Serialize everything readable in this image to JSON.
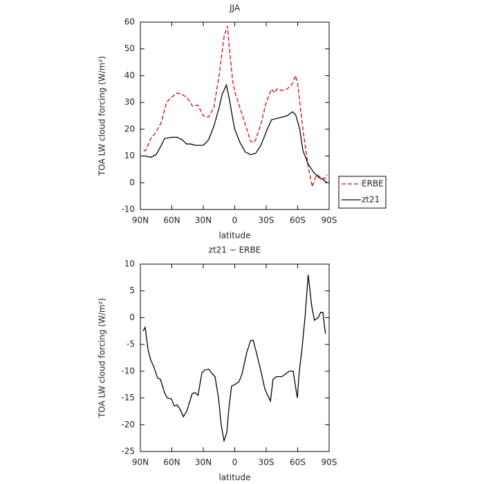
{
  "chart_data": [
    {
      "type": "line",
      "title": "JJA",
      "xlabel": "latitude",
      "ylabel": "TOA LW cloud forcing (W/m²)",
      "xlim": [
        90,
        -90
      ],
      "ylim": [
        -10,
        60
      ],
      "xticks": [
        {
          "value": 90,
          "label": "90N"
        },
        {
          "value": 60,
          "label": "60N"
        },
        {
          "value": 30,
          "label": "30N"
        },
        0,
        {
          "value": -30,
          "label": "30S"
        },
        {
          "value": -60,
          "label": "60S"
        },
        {
          "value": -90,
          "label": "90S"
        }
      ],
      "yticks": [
        -10,
        0,
        10,
        20,
        30,
        40,
        50,
        60
      ],
      "legend": "right",
      "series": [
        {
          "name": "ERBE",
          "color": "#e00000",
          "line_style": "dashed",
          "x": [
            87,
            85,
            80,
            75,
            70,
            65,
            60,
            55,
            50,
            45,
            40,
            35,
            30,
            25,
            20,
            15,
            10,
            7,
            5,
            2,
            0,
            -5,
            -10,
            -15,
            -18,
            -20,
            -25,
            -30,
            -35,
            -38,
            -40,
            -45,
            -50,
            -55,
            -58,
            -60,
            -65,
            -70,
            -74,
            -78,
            -82,
            -86,
            -88
          ],
          "values": [
            12,
            12,
            16.5,
            19,
            22.5,
            30,
            32,
            33.5,
            33,
            31.5,
            28.5,
            29,
            25,
            24.5,
            28,
            40,
            55,
            58.5,
            50,
            38,
            34,
            28,
            22,
            15.5,
            15,
            16,
            22,
            30,
            35,
            33.5,
            35,
            34.5,
            35,
            37,
            40,
            37,
            20,
            6,
            -1.5,
            3,
            2,
            1.5,
            3
          ]
        },
        {
          "name": "zt21",
          "color": "#000000",
          "line_style": "solid",
          "x": [
            88,
            85,
            80,
            75,
            70,
            67,
            60,
            55,
            50,
            46,
            42,
            38,
            33,
            30,
            25,
            20,
            15,
            12,
            8,
            5,
            2,
            0,
            -5,
            -10,
            -15,
            -20,
            -25,
            -30,
            -35,
            -40,
            -45,
            -50,
            -55,
            -58,
            -62,
            -65,
            -70,
            -75,
            -80,
            -85,
            -88
          ],
          "values": [
            10,
            10,
            9.5,
            10.5,
            14,
            16.5,
            17,
            17,
            16,
            14.5,
            14.5,
            14,
            14,
            14,
            16,
            21,
            28,
            33,
            36.5,
            31,
            24,
            20,
            15,
            11.5,
            10.5,
            11,
            14,
            19,
            23.5,
            24,
            24.5,
            25,
            26.5,
            25.5,
            20,
            12,
            7,
            4,
            2,
            1,
            0
          ]
        }
      ]
    },
    {
      "type": "line",
      "title": "zt21 − ERBE",
      "xlabel": "latitude",
      "ylabel": "TOA LW cloud forcing (W/m²)",
      "xlim": [
        90,
        -90
      ],
      "ylim": [
        -25,
        10
      ],
      "xticks": [
        {
          "value": 90,
          "label": "90N"
        },
        {
          "value": 60,
          "label": "60N"
        },
        {
          "value": 30,
          "label": "30N"
        },
        0,
        {
          "value": -30,
          "label": "30S"
        },
        {
          "value": -60,
          "label": "60S"
        },
        {
          "value": -90,
          "label": "90S"
        }
      ],
      "yticks": [
        -25,
        -20,
        -15,
        -10,
        -5,
        0,
        5,
        10
      ],
      "series": [
        {
          "color": "#000000",
          "line_style": "solid",
          "x": [
            87.4,
            85.4,
            82.7,
            80,
            77.5,
            73.5,
            70.9,
            67,
            64.3,
            60.3,
            57.7,
            55,
            52.4,
            49,
            45.8,
            40.6,
            38,
            35,
            31.3,
            28.7,
            24.7,
            21.4,
            18.8,
            15.5,
            12.9,
            10.2,
            7.6,
            5.6,
            3,
            0,
            -4,
            -7,
            -11.5,
            -15,
            -17.5,
            -20,
            -25,
            -28.7,
            -34,
            -36.5,
            -40,
            -45,
            -52,
            -55.7,
            -59.7,
            -61.6,
            -64,
            -67,
            -70,
            -73.5,
            -76,
            -79.5,
            -82,
            -84,
            -86.5
          ],
          "values": [
            -2.5,
            -1.8,
            -6,
            -8,
            -9,
            -11.3,
            -11.5,
            -14,
            -15,
            -15.2,
            -16.5,
            -16.3,
            -17,
            -18.5,
            -17.5,
            -14.2,
            -14,
            -14.5,
            -10.3,
            -9.8,
            -9.6,
            -10.5,
            -11,
            -15,
            -20,
            -23,
            -21.5,
            -17,
            -12.8,
            -12.5,
            -12,
            -10.5,
            -6.5,
            -4.3,
            -4.2,
            -6,
            -10,
            -13.3,
            -15.6,
            -11.5,
            -11,
            -11,
            -10,
            -10,
            -15,
            -10,
            -6,
            0,
            8,
            2,
            -0.5,
            0,
            1,
            1,
            -3
          ]
        }
      ]
    }
  ]
}
